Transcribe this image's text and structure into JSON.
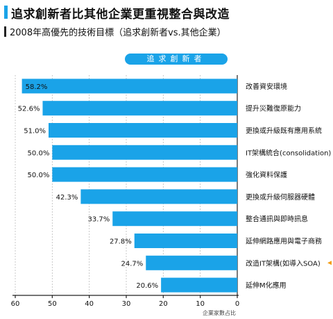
{
  "title": "追求創新者比其他企業更重視整合與改造",
  "subtitle": "2008年高優先的技術目標（追求創新者vs.其他企業）",
  "chart_data": {
    "type": "bar",
    "orientation": "horizontal",
    "legend": [
      "追求創新者"
    ],
    "categories": [
      "改善資安環境",
      "提升災難復原能力",
      "更換或升級既有應用系統",
      "IT架構統合(consolidation)",
      "強化資料保護",
      "更換或升級伺服器硬體",
      "整合通訊與即時訊息",
      "延伸網路應用與電子商務",
      "改造IT架構(如導入SOA)",
      "延伸M化應用"
    ],
    "series": [
      {
        "name": "追求創新者",
        "values": [
          58.2,
          52.6,
          51.0,
          50.0,
          50.0,
          42.3,
          33.7,
          27.8,
          24.7,
          20.6
        ],
        "labels": [
          "58.2%",
          "52.6%",
          "51.0%",
          "50.0%",
          "50.0%",
          "42.3%",
          "33.7%",
          "27.8%",
          "24.7%",
          "20.6%"
        ]
      }
    ],
    "xlim": [
      60,
      0
    ],
    "xticks": [
      "60",
      "50",
      "40",
      "30",
      "20",
      "10",
      "0"
    ],
    "xlabel": "企業家數占比",
    "grid": true,
    "colors": {
      "bar": "#1aa3e8",
      "accent": "#f39c12"
    }
  }
}
